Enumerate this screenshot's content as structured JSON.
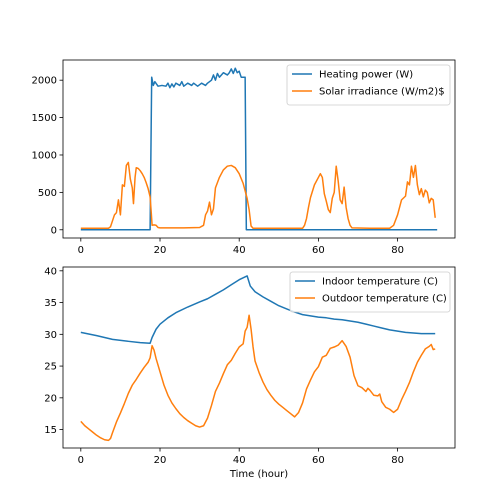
{
  "colors": {
    "blue": "#1f77b4",
    "orange": "#ff7f0e"
  },
  "chart_data": [
    {
      "type": "line",
      "xlim": [
        -4.5,
        94.5
      ],
      "ylim": [
        -110,
        2270
      ],
      "xticks": [
        0,
        20,
        40,
        60,
        80
      ],
      "yticks": [
        0,
        500,
        1000,
        1500,
        2000
      ],
      "legend": "top-right",
      "series": [
        {
          "name": "Heating power (W)",
          "color": "#1f77b4",
          "points": [
            [
              0,
              0
            ],
            [
              17.5,
              0
            ],
            [
              17.9,
              2040
            ],
            [
              18.3,
              1930
            ],
            [
              18.7,
              1980
            ],
            [
              19.5,
              1920
            ],
            [
              20.5,
              1930
            ],
            [
              21.5,
              1920
            ],
            [
              22,
              1960
            ],
            [
              22.5,
              1900
            ],
            [
              23,
              1950
            ],
            [
              23.5,
              1910
            ],
            [
              24,
              1960
            ],
            [
              25,
              1930
            ],
            [
              25.5,
              1980
            ],
            [
              26,
              1920
            ],
            [
              27,
              1960
            ],
            [
              28,
              1930
            ],
            [
              28.5,
              1960
            ],
            [
              29.5,
              1920
            ],
            [
              30.5,
              1960
            ],
            [
              31.5,
              1930
            ],
            [
              32,
              1960
            ],
            [
              33,
              2000
            ],
            [
              33.5,
              2070
            ],
            [
              34,
              2000
            ],
            [
              34.5,
              2090
            ],
            [
              35,
              2040
            ],
            [
              36,
              2100
            ],
            [
              37,
              2070
            ],
            [
              37.5,
              2100
            ],
            [
              38,
              2150
            ],
            [
              38.5,
              2090
            ],
            [
              39,
              2160
            ],
            [
              39.5,
              2100
            ],
            [
              40,
              2120
            ],
            [
              40.5,
              2040
            ],
            [
              41.5,
              2040
            ],
            [
              41.8,
              0
            ],
            [
              90,
              0
            ]
          ]
        },
        {
          "name": "Solar irradiance (W/m2)$",
          "color": "#ff7f0e",
          "points": [
            [
              0,
              20
            ],
            [
              7,
              20
            ],
            [
              7.5,
              40
            ],
            [
              8,
              120
            ],
            [
              8.5,
              200
            ],
            [
              9,
              230
            ],
            [
              9.5,
              400
            ],
            [
              10,
              200
            ],
            [
              10.5,
              600
            ],
            [
              11,
              580
            ],
            [
              11.5,
              860
            ],
            [
              12,
              900
            ],
            [
              12.5,
              680
            ],
            [
              13,
              560
            ],
            [
              13.3,
              350
            ],
            [
              13.7,
              700
            ],
            [
              14,
              830
            ],
            [
              14.5,
              820
            ],
            [
              15,
              790
            ],
            [
              15.5,
              750
            ],
            [
              16,
              700
            ],
            [
              16.5,
              630
            ],
            [
              17,
              550
            ],
            [
              17.5,
              440
            ],
            [
              17.8,
              220
            ],
            [
              18,
              60
            ],
            [
              18.5,
              65
            ],
            [
              19,
              60
            ],
            [
              19.5,
              30
            ],
            [
              20,
              25
            ],
            [
              26,
              25
            ],
            [
              30,
              30
            ],
            [
              31,
              60
            ],
            [
              31.5,
              200
            ],
            [
              32,
              250
            ],
            [
              32.5,
              370
            ],
            [
              33,
              200
            ],
            [
              33.5,
              280
            ],
            [
              34,
              560
            ],
            [
              35,
              700
            ],
            [
              36,
              800
            ],
            [
              37,
              850
            ],
            [
              38,
              860
            ],
            [
              39,
              830
            ],
            [
              40,
              750
            ],
            [
              41,
              620
            ],
            [
              42,
              420
            ],
            [
              42.5,
              270
            ],
            [
              43,
              50
            ],
            [
              43.5,
              20
            ],
            [
              56,
              20
            ],
            [
              56.5,
              60
            ],
            [
              57,
              150
            ],
            [
              57.5,
              300
            ],
            [
              58,
              430
            ],
            [
              59,
              600
            ],
            [
              60,
              700
            ],
            [
              60.5,
              750
            ],
            [
              61,
              700
            ],
            [
              61.5,
              480
            ],
            [
              62,
              380
            ],
            [
              62.5,
              270
            ],
            [
              63,
              230
            ],
            [
              63.5,
              420
            ],
            [
              64,
              500
            ],
            [
              64.5,
              850
            ],
            [
              65,
              650
            ],
            [
              65.5,
              400
            ],
            [
              66,
              350
            ],
            [
              66.5,
              570
            ],
            [
              67,
              300
            ],
            [
              67.5,
              150
            ],
            [
              68,
              60
            ],
            [
              68.5,
              25
            ],
            [
              73,
              20
            ],
            [
              78,
              20
            ],
            [
              79,
              60
            ],
            [
              80,
              200
            ],
            [
              81,
              400
            ],
            [
              82,
              450
            ],
            [
              82.5,
              640
            ],
            [
              83,
              600
            ],
            [
              83.5,
              850
            ],
            [
              84,
              700
            ],
            [
              84.5,
              860
            ],
            [
              85,
              600
            ],
            [
              85.5,
              470
            ],
            [
              86,
              550
            ],
            [
              86.5,
              440
            ],
            [
              87,
              530
            ],
            [
              87.5,
              500
            ],
            [
              88,
              360
            ],
            [
              88.5,
              420
            ],
            [
              89,
              400
            ],
            [
              89.5,
              160
            ]
          ]
        }
      ]
    },
    {
      "type": "line",
      "xlim": [
        -4.5,
        94.5
      ],
      "ylim": [
        12.1,
        40.6
      ],
      "xticks": [
        0,
        20,
        40,
        60,
        80
      ],
      "yticks": [
        15,
        20,
        25,
        30,
        35,
        40
      ],
      "xlabel": "Time (hour)",
      "legend": "top-right",
      "series": [
        {
          "name": "Indoor temperature (C)",
          "color": "#1f77b4",
          "points": [
            [
              0,
              30.3
            ],
            [
              4,
              29.8
            ],
            [
              8,
              29.2
            ],
            [
              12,
              28.9
            ],
            [
              15,
              28.7
            ],
            [
              17.5,
              28.6
            ],
            [
              18,
              29.5
            ],
            [
              19,
              30.8
            ],
            [
              20,
              31.6
            ],
            [
              22,
              32.6
            ],
            [
              24,
              33.4
            ],
            [
              27,
              34.3
            ],
            [
              30,
              35.1
            ],
            [
              32,
              35.6
            ],
            [
              34,
              36.3
            ],
            [
              36,
              37.0
            ],
            [
              38,
              37.8
            ],
            [
              40,
              38.6
            ],
            [
              42,
              39.2
            ],
            [
              42.8,
              37.6
            ],
            [
              44,
              36.7
            ],
            [
              46,
              35.9
            ],
            [
              48,
              35.2
            ],
            [
              50,
              34.5
            ],
            [
              52,
              34.0
            ],
            [
              54,
              33.5
            ],
            [
              56,
              33.1
            ],
            [
              58,
              32.9
            ],
            [
              60,
              32.7
            ],
            [
              62,
              32.6
            ],
            [
              64,
              32.4
            ],
            [
              66,
              32.3
            ],
            [
              68,
              32.1
            ],
            [
              70,
              31.9
            ],
            [
              72,
              31.6
            ],
            [
              74,
              31.3
            ],
            [
              76,
              31.0
            ],
            [
              78,
              30.7
            ],
            [
              80,
              30.5
            ],
            [
              82,
              30.3
            ],
            [
              84,
              30.2
            ],
            [
              86,
              30.1
            ],
            [
              89.5,
              30.1
            ]
          ]
        },
        {
          "name": "Outdoor temperature (C)",
          "color": "#ff7f0e",
          "points": [
            [
              0,
              16.3
            ],
            [
              1,
              15.6
            ],
            [
              2,
              15.1
            ],
            [
              3,
              14.6
            ],
            [
              4,
              14.1
            ],
            [
              5,
              13.7
            ],
            [
              6,
              13.4
            ],
            [
              7,
              13.3
            ],
            [
              7.5,
              13.6
            ],
            [
              8,
              14.5
            ],
            [
              9,
              16.2
            ],
            [
              10,
              17.6
            ],
            [
              11,
              19.1
            ],
            [
              12,
              20.7
            ],
            [
              13,
              22.0
            ],
            [
              14,
              22.9
            ],
            [
              15,
              23.9
            ],
            [
              16,
              24.8
            ],
            [
              17,
              25.6
            ],
            [
              17.5,
              26.3
            ],
            [
              18,
              28.2
            ],
            [
              18.5,
              27.5
            ],
            [
              19,
              26.2
            ],
            [
              20,
              24.1
            ],
            [
              21,
              22.0
            ],
            [
              22,
              20.4
            ],
            [
              23,
              19.2
            ],
            [
              24,
              18.3
            ],
            [
              25,
              17.5
            ],
            [
              26,
              16.9
            ],
            [
              27,
              16.4
            ],
            [
              28,
              16.0
            ],
            [
              29,
              15.6
            ],
            [
              30,
              15.4
            ],
            [
              31,
              15.6
            ],
            [
              32,
              16.8
            ],
            [
              33,
              18.8
            ],
            [
              34,
              21.0
            ],
            [
              35,
              22.3
            ],
            [
              36,
              23.8
            ],
            [
              37,
              25.2
            ],
            [
              38,
              25.9
            ],
            [
              39,
              27.0
            ],
            [
              40,
              28.0
            ],
            [
              41,
              28.5
            ],
            [
              41.5,
              30.5
            ],
            [
              42,
              31.1
            ],
            [
              42.5,
              33.0
            ],
            [
              43,
              30.8
            ],
            [
              43.5,
              28.0
            ],
            [
              44,
              25.8
            ],
            [
              45,
              24.0
            ],
            [
              46,
              22.5
            ],
            [
              47,
              21.3
            ],
            [
              48,
              20.4
            ],
            [
              49,
              19.6
            ],
            [
              50,
              19.0
            ],
            [
              51,
              18.5
            ],
            [
              52,
              18.0
            ],
            [
              53,
              17.5
            ],
            [
              54,
              17.0
            ],
            [
              55,
              17.7
            ],
            [
              56,
              19.2
            ],
            [
              57,
              21.4
            ],
            [
              58,
              22.8
            ],
            [
              59,
              24.1
            ],
            [
              60,
              24.9
            ],
            [
              61,
              26.4
            ],
            [
              62,
              26.7
            ],
            [
              63,
              27.8
            ],
            [
              64,
              28.0
            ],
            [
              65,
              28.3
            ],
            [
              66,
              29.0
            ],
            [
              67,
              28.1
            ],
            [
              68,
              26.4
            ],
            [
              69,
              23.5
            ],
            [
              70,
              21.9
            ],
            [
              71,
              21.6
            ],
            [
              72,
              21.0
            ],
            [
              72.5,
              21.5
            ],
            [
              73,
              21.2
            ],
            [
              74,
              20.4
            ],
            [
              75,
              20.3
            ],
            [
              75.5,
              20.6
            ],
            [
              76,
              19.4
            ],
            [
              77,
              18.5
            ],
            [
              78,
              18.2
            ],
            [
              79,
              17.7
            ],
            [
              80,
              18.2
            ],
            [
              81,
              19.7
            ],
            [
              82,
              21.0
            ],
            [
              83,
              22.4
            ],
            [
              84,
              24.1
            ],
            [
              85,
              25.6
            ],
            [
              86,
              26.7
            ],
            [
              87,
              27.7
            ],
            [
              88,
              28.1
            ],
            [
              88.5,
              28.4
            ],
            [
              89,
              27.6
            ],
            [
              89.5,
              27.7
            ]
          ]
        }
      ]
    }
  ]
}
